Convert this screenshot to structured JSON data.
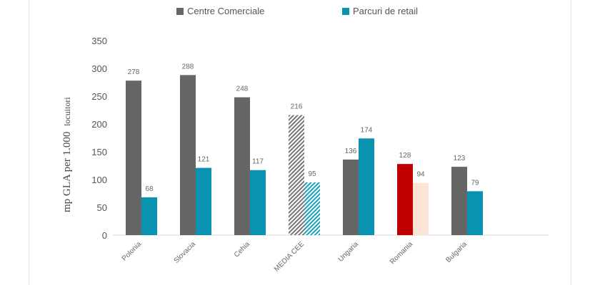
{
  "chart_data": {
    "type": "bar",
    "categories": [
      "Polonia",
      "Slovacia",
      "Cehia",
      "MEDIA CEE",
      "Ungaria",
      "Romania",
      "Bulgaria"
    ],
    "series": [
      {
        "name": "Centre Comerciale",
        "values": [
          278,
          288,
          248,
          216,
          136,
          128,
          123
        ]
      },
      {
        "name": "Parcuri de retail",
        "values": [
          68,
          121,
          117,
          95,
          174,
          94,
          79
        ]
      }
    ],
    "ylabel_main": "mp GLA per 1.000",
    "ylabel_small": "locuitori",
    "ylim": [
      0,
      350
    ],
    "yticks": [
      0,
      50,
      100,
      150,
      200,
      250,
      300,
      350
    ],
    "legend_position": "top",
    "grid": false,
    "colors": {
      "centre": "#666666",
      "parcuri": "#0a93b0",
      "media_centre_hatch": "#777777",
      "media_parcuri_hatch": "#1aa0bd",
      "romania_centre": "#c00000",
      "romania_parcuri": "#fbe3d6"
    }
  }
}
